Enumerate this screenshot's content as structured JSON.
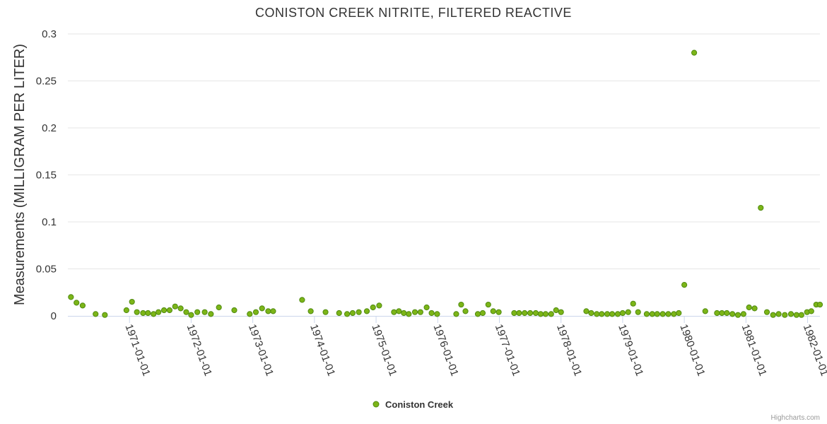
{
  "chart_data": {
    "type": "scatter",
    "title": "CONISTON CREEK NITRITE, FILTERED REACTIVE",
    "xlabel": "",
    "ylabel": "Measurements (MILLIGRAM PER LITER)",
    "ylim": [
      0,
      0.3
    ],
    "yticks": [
      0,
      0.05,
      0.1,
      0.15,
      0.2,
      0.25,
      0.3
    ],
    "ytick_labels": [
      "0",
      "0.05",
      "0.1",
      "0.15",
      "0.2",
      "0.25",
      "0.3"
    ],
    "xlim": [
      1970.0,
      1982.2
    ],
    "xticks": [
      1971,
      1972,
      1973,
      1974,
      1975,
      1976,
      1977,
      1978,
      1979,
      1980,
      1981,
      1982
    ],
    "xtick_labels": [
      "1971-01-01",
      "1972-01-01",
      "1973-01-01",
      "1974-01-01",
      "1975-01-01",
      "1976-01-01",
      "1977-01-01",
      "1978-01-01",
      "1979-01-01",
      "1980-01-01",
      "1981-01-01",
      "1982-01-01"
    ],
    "grid": true,
    "legend": "bottom-center",
    "series": [
      {
        "name": "Coniston Creek",
        "color": "#7cb518",
        "x": [
          1970.05,
          1970.14,
          1970.24,
          1970.45,
          1970.6,
          1970.95,
          1971.04,
          1971.12,
          1971.22,
          1971.3,
          1971.39,
          1971.47,
          1971.56,
          1971.65,
          1971.74,
          1971.83,
          1971.92,
          1972.0,
          1972.1,
          1972.22,
          1972.32,
          1972.45,
          1972.7,
          1972.95,
          1973.05,
          1973.15,
          1973.25,
          1973.33,
          1973.8,
          1973.94,
          1974.18,
          1974.4,
          1974.53,
          1974.62,
          1974.72,
          1974.85,
          1974.95,
          1975.05,
          1975.29,
          1975.37,
          1975.45,
          1975.53,
          1975.63,
          1975.72,
          1975.82,
          1975.9,
          1975.99,
          1976.3,
          1976.38,
          1976.45,
          1976.65,
          1976.73,
          1976.82,
          1976.9,
          1976.99,
          1977.24,
          1977.32,
          1977.41,
          1977.5,
          1977.59,
          1977.67,
          1977.75,
          1977.84,
          1977.92,
          1978.0,
          1978.41,
          1978.49,
          1978.58,
          1978.66,
          1978.75,
          1978.83,
          1978.92,
          1979.0,
          1979.09,
          1979.17,
          1979.25,
          1979.39,
          1979.48,
          1979.56,
          1979.65,
          1979.74,
          1979.83,
          1979.91,
          1980.0,
          1980.16,
          1980.34,
          1980.53,
          1980.61,
          1980.69,
          1980.78,
          1980.87,
          1980.96,
          1981.05,
          1981.14,
          1981.24,
          1981.34,
          1981.44,
          1981.53,
          1981.63,
          1981.73,
          1981.82,
          1981.9,
          1981.99,
          1982.06,
          1982.14,
          1982.2
        ],
        "y": [
          0.02,
          0.014,
          0.011,
          0.002,
          0.001,
          0.006,
          0.015,
          0.004,
          0.003,
          0.003,
          0.002,
          0.004,
          0.006,
          0.006,
          0.01,
          0.008,
          0.004,
          0.001,
          0.004,
          0.004,
          0.002,
          0.009,
          0.006,
          0.002,
          0.004,
          0.008,
          0.005,
          0.005,
          0.017,
          0.005,
          0.004,
          0.003,
          0.002,
          0.003,
          0.004,
          0.005,
          0.009,
          0.011,
          0.004,
          0.005,
          0.003,
          0.002,
          0.004,
          0.004,
          0.009,
          0.003,
          0.002,
          0.002,
          0.012,
          0.005,
          0.002,
          0.003,
          0.012,
          0.005,
          0.004,
          0.003,
          0.003,
          0.003,
          0.003,
          0.003,
          0.002,
          0.002,
          0.002,
          0.006,
          0.004,
          0.005,
          0.003,
          0.002,
          0.002,
          0.002,
          0.002,
          0.002,
          0.003,
          0.004,
          0.013,
          0.004,
          0.002,
          0.002,
          0.002,
          0.002,
          0.002,
          0.002,
          0.003,
          0.033,
          0.28,
          0.005,
          0.003,
          0.003,
          0.003,
          0.002,
          0.001,
          0.002,
          0.009,
          0.008,
          0.115,
          0.004,
          0.001,
          0.002,
          0.001,
          0.002,
          0.001,
          0.001,
          0.004,
          0.005,
          0.012,
          0.012
        ]
      }
    ]
  },
  "credit": "Highcharts.com"
}
